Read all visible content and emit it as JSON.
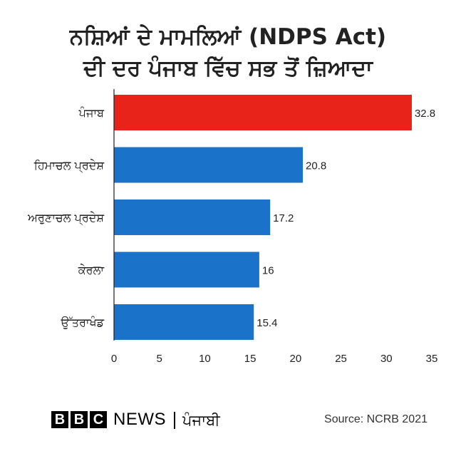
{
  "title_line1": "ਨਸ਼ਿਆਂ ਦੇ ਮਾਮਲਿਆਂ (NDPS Act)",
  "title_line2": "ਦੀ ਦਰ ਪੰਜਾਬ ਵਿੱਚ ਸਭ ਤੋਂ ਜ਼ਿਆਦਾ",
  "chart_data": {
    "type": "bar",
    "orientation": "horizontal",
    "categories": [
      "ਪੰਜਾਬ",
      "ਹਿਮਾਚਲ ਪ੍ਰਦੇਸ਼",
      "ਅਰੁਣਾਚਲ ਪ੍ਰਦੇਸ਼",
      "ਕੇਰਲਾ",
      "ਉੱਤਰਾਖੰਡ"
    ],
    "values": [
      32.8,
      20.8,
      17.2,
      16,
      15.4
    ],
    "value_labels": [
      "32.8",
      "20.8",
      "17.2",
      "16",
      "15.4"
    ],
    "colors": [
      "#e8241a",
      "#1a73c9",
      "#1a73c9",
      "#1a73c9",
      "#1a73c9"
    ],
    "xlim": [
      0,
      35
    ],
    "xticks": [
      0,
      5,
      10,
      15,
      20,
      25,
      30,
      35
    ],
    "title": "ਨਸ਼ਿਆਂ ਦੇ ਮਾਮਲਿਆਂ (NDPS Act) ਦੀ ਦਰ ਪੰਜਾਬ ਵਿੱਚ ਸਭ ਤੋਂ ਜ਼ਿਆਦਾ",
    "xlabel": "",
    "ylabel": "",
    "grid": false,
    "legend": "none"
  },
  "footer": {
    "bbc_letters": [
      "B",
      "B",
      "C"
    ],
    "news_label": "NEWS",
    "service_label": "ਪੰਜਾਬੀ",
    "source": "Source: NCRB 2021"
  },
  "colors": {
    "highlight": "#e8241a",
    "bar": "#1a73c9",
    "axis": "#222222"
  }
}
